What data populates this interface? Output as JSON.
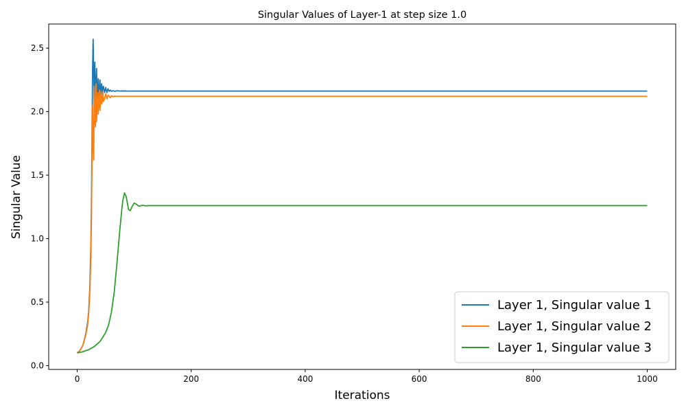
{
  "chart_data": {
    "type": "line",
    "title": "Singular Values of Layer-1 at step size 1.0",
    "xlabel": "Iterations",
    "ylabel": "Singular Value",
    "xlim": [
      -50,
      1050
    ],
    "ylim": [
      -0.03,
      2.69
    ],
    "xticks": [
      0,
      200,
      400,
      600,
      800,
      1000
    ],
    "yticks": [
      0.0,
      0.5,
      1.0,
      1.5,
      2.0,
      2.5
    ],
    "xtick_labels": [
      "0",
      "200",
      "400",
      "600",
      "800",
      "1000"
    ],
    "ytick_labels": [
      "0.0",
      "0.5",
      "1.0",
      "1.5",
      "2.0",
      "2.5"
    ],
    "grid": false,
    "legend_position": "lower-right",
    "series": [
      {
        "name": "Layer 1, Singular value 1",
        "color": "#1f77b4",
        "x": [
          0,
          5,
          10,
          15,
          18,
          20,
          22,
          24,
          25,
          26,
          27,
          28,
          29,
          30,
          31,
          32,
          33,
          34,
          35,
          36,
          37,
          38,
          39,
          40,
          41,
          42,
          43,
          44,
          45,
          46,
          48,
          50,
          52,
          54,
          56,
          58,
          60,
          63,
          66,
          70,
          75,
          80,
          90,
          100,
          200,
          400,
          600,
          800,
          1000
        ],
        "y": [
          0.1,
          0.12,
          0.16,
          0.25,
          0.33,
          0.42,
          0.6,
          0.95,
          1.3,
          1.8,
          2.35,
          2.57,
          2.3,
          1.95,
          2.39,
          2.05,
          2.2,
          2.34,
          2.07,
          2.2,
          2.26,
          2.1,
          2.18,
          2.25,
          2.12,
          2.2,
          2.22,
          2.14,
          2.19,
          2.2,
          2.15,
          2.19,
          2.15,
          2.18,
          2.16,
          2.17,
          2.16,
          2.165,
          2.16,
          2.165,
          2.162,
          2.163,
          2.162,
          2.162,
          2.162,
          2.162,
          2.162,
          2.162,
          2.162
        ]
      },
      {
        "name": "Layer 1, Singular value 2",
        "color": "#ff7f0e",
        "x": [
          0,
          5,
          10,
          15,
          18,
          20,
          22,
          24,
          25,
          26,
          27,
          28,
          29,
          30,
          31,
          32,
          33,
          34,
          35,
          36,
          37,
          38,
          39,
          40,
          41,
          42,
          43,
          44,
          45,
          46,
          48,
          50,
          52,
          54,
          56,
          58,
          60,
          63,
          66,
          70,
          75,
          80,
          90,
          100,
          200,
          400,
          600,
          800,
          1000
        ],
        "y": [
          0.1,
          0.12,
          0.16,
          0.24,
          0.31,
          0.4,
          0.55,
          0.85,
          1.15,
          1.6,
          2.05,
          1.75,
          1.62,
          2.2,
          1.95,
          1.88,
          2.22,
          1.92,
          2.05,
          2.15,
          1.98,
          2.08,
          2.17,
          2.01,
          2.1,
          2.16,
          2.06,
          2.09,
          2.15,
          2.08,
          2.1,
          2.14,
          2.1,
          2.13,
          2.12,
          2.11,
          2.125,
          2.118,
          2.122,
          2.12,
          2.121,
          2.121,
          2.121,
          2.121,
          2.121,
          2.121,
          2.121,
          2.121,
          2.121
        ]
      },
      {
        "name": "Layer 1, Singular value 3",
        "color": "#2ca02c",
        "x": [
          0,
          10,
          20,
          30,
          40,
          50,
          55,
          60,
          65,
          70,
          75,
          78,
          80,
          83,
          86,
          88,
          90,
          93,
          96,
          100,
          104,
          108,
          112,
          116,
          120,
          125,
          130,
          140,
          200,
          400,
          600,
          800,
          1000
        ],
        "y": [
          0.1,
          0.11,
          0.125,
          0.15,
          0.19,
          0.26,
          0.32,
          0.42,
          0.58,
          0.82,
          1.08,
          1.22,
          1.3,
          1.36,
          1.33,
          1.28,
          1.23,
          1.22,
          1.25,
          1.28,
          1.27,
          1.255,
          1.26,
          1.262,
          1.258,
          1.26,
          1.26,
          1.26,
          1.26,
          1.26,
          1.26,
          1.26,
          1.26
        ]
      }
    ]
  }
}
